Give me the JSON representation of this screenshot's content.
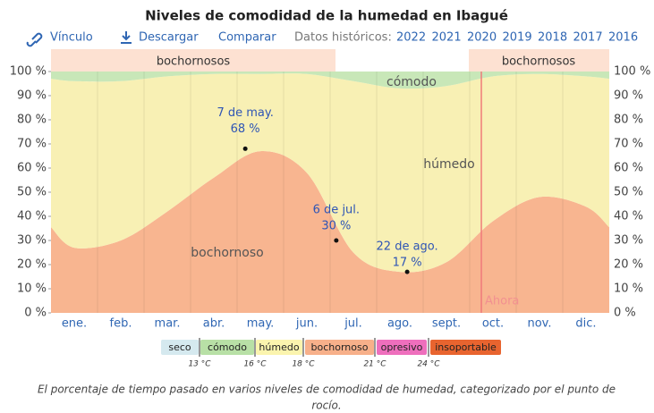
{
  "header": {
    "links": [
      "Vínculo",
      "Descargar",
      "Comparar"
    ],
    "history_label": "Datos históricos:",
    "years": [
      "2022",
      "2021",
      "2020",
      "2019",
      "2018",
      "2017",
      "2016"
    ]
  },
  "chart_data": {
    "type": "area",
    "title": "Niveles de comodidad de la humedad en Ibagué",
    "categories": [
      "ene.",
      "feb.",
      "mar.",
      "abr.",
      "may.",
      "jun.",
      "jul.",
      "ago.",
      "sept.",
      "oct.",
      "nov.",
      "dic."
    ],
    "series": [
      {
        "name": "bochornoso",
        "color": "#f8b590",
        "values": [
          27,
          30,
          42,
          56,
          67,
          58,
          25,
          17,
          21,
          38,
          48,
          44
        ]
      },
      {
        "name": "húmedo",
        "color": "#f8f0b4",
        "values": [
          69,
          66,
          56,
          43,
          32,
          41,
          71,
          76,
          73,
          60,
          51,
          54
        ]
      },
      {
        "name": "cómodo",
        "color": "#c8e7b8",
        "values": [
          4,
          4,
          2,
          1,
          1,
          1,
          4,
          7,
          6,
          2,
          1,
          2
        ]
      }
    ],
    "ylim": [
      0,
      100
    ],
    "yticks": [
      {
        "value": 0,
        "label": "0 %"
      },
      {
        "value": 10,
        "label": "10 %"
      },
      {
        "value": 20,
        "label": "20 %"
      },
      {
        "value": 30,
        "label": "30 %"
      },
      {
        "value": 40,
        "label": "40 %"
      },
      {
        "value": 50,
        "label": "50 %"
      },
      {
        "value": 60,
        "label": "60 %"
      },
      {
        "value": 70,
        "label": "70 %"
      },
      {
        "value": 80,
        "label": "80 %"
      },
      {
        "value": 90,
        "label": "90 %"
      },
      {
        "value": 100,
        "label": "100 %"
      }
    ],
    "annotations": [
      {
        "label": "7 de may.",
        "value": 68,
        "value_label": "68 %"
      },
      {
        "label": "6 de jul.",
        "value": 30,
        "value_label": "30 %"
      },
      {
        "label": "22 de ago.",
        "value": 17,
        "value_label": "17 %"
      }
    ],
    "season_label": "bochornosos",
    "now_label": "Ahora"
  },
  "legend": {
    "items": [
      {
        "name": "seco",
        "color": "#d5e9ef"
      },
      {
        "name": "cómodo",
        "color": "#b8e0a6"
      },
      {
        "name": "húmedo",
        "color": "#fbf4ae"
      },
      {
        "name": "bochornoso",
        "color": "#f7b08a"
      },
      {
        "name": "opresivo",
        "color": "#ee6fbd"
      },
      {
        "name": "insoportable",
        "color": "#e8642f"
      }
    ],
    "thresholds": [
      "13 °C",
      "16 °C",
      "18 °C",
      "21 °C",
      "24 °C"
    ]
  },
  "caption": "El porcentaje de tiempo pasado en varios niveles de comodidad de humedad, categorizado por el punto de rocío."
}
